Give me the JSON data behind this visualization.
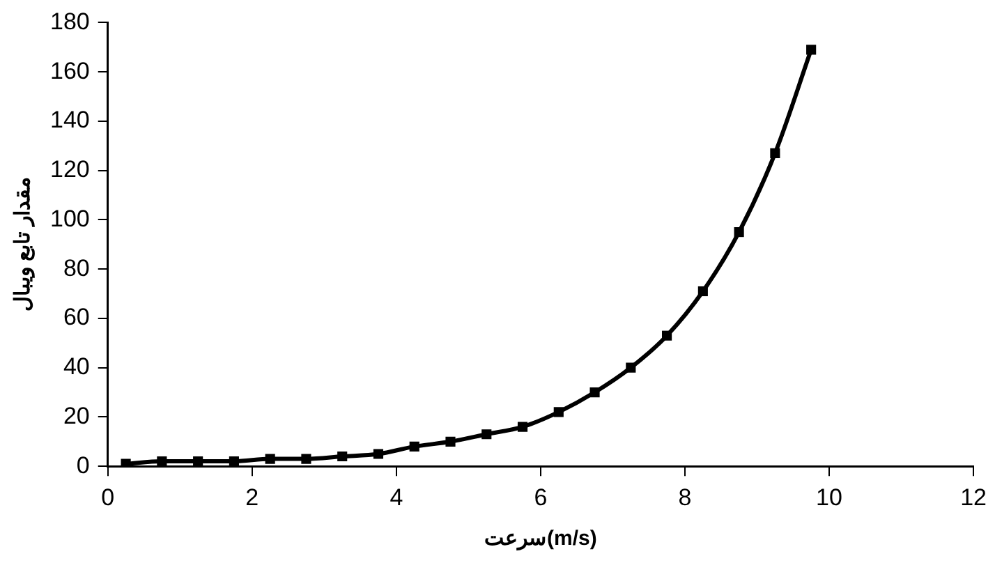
{
  "chart_data": {
    "type": "line",
    "xlabel": "سرعت(m/s)",
    "ylabel": "مقدار تابع ویبال",
    "x": [
      0.25,
      0.75,
      1.25,
      1.75,
      2.25,
      2.75,
      3.25,
      3.75,
      4.25,
      4.75,
      5.25,
      5.75,
      6.25,
      6.75,
      7.25,
      7.75,
      8.25,
      8.75,
      9.25,
      9.75
    ],
    "series": [
      {
        "color": "#000000",
        "values": [
          1,
          2,
          2,
          2,
          3,
          3,
          4,
          5,
          8,
          10,
          13,
          16,
          22,
          30,
          40,
          53,
          71,
          95,
          127,
          169
        ]
      }
    ],
    "xlim": [
      0,
      12
    ],
    "xticks": [
      0,
      2,
      4,
      6,
      8,
      10,
      12
    ],
    "ylim": [
      0,
      180
    ],
    "yticks": [
      0,
      20,
      40,
      60,
      80,
      100,
      120,
      140,
      160,
      180
    ],
    "grid": false,
    "legend": false,
    "marker": "square",
    "line_style": "solid"
  }
}
